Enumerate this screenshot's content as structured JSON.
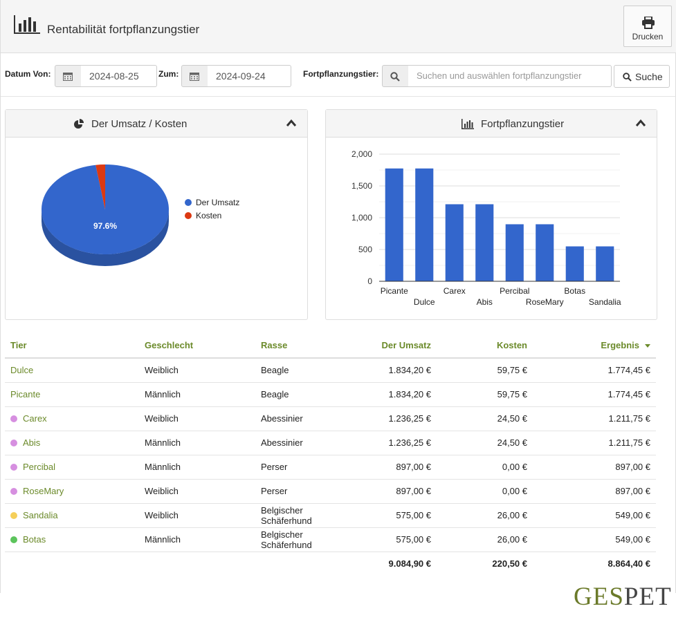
{
  "header": {
    "title": "Rentabilität fortpflanzungstier",
    "print_label": "Drucken"
  },
  "filters": {
    "from_label": "Datum Von:",
    "from_value": "2024-08-25",
    "to_label": "Zum:",
    "to_value": "2024-09-24",
    "animal_label": "Fortpflanzungstier:",
    "animal_placeholder": "Suchen und auswählen fortpflanzungstier",
    "search_label": "Suche"
  },
  "pie_panel": {
    "title": "Der Umsatz / Kosten"
  },
  "bar_panel": {
    "title": "Fortpflanzungstier"
  },
  "chart_data": [
    {
      "type": "pie",
      "slices": [
        {
          "name": "Der Umsatz",
          "value": 97.6,
          "color": "#3366cc"
        },
        {
          "name": "Kosten",
          "value": 2.4,
          "color": "#dc3912"
        }
      ],
      "slice_label": "97.6%",
      "legend": "right",
      "is3d": true
    },
    {
      "type": "bar",
      "categories": [
        "Picante",
        "Dulce",
        "Carex",
        "Abis",
        "Percibal",
        "RoseMary",
        "Botas",
        "Sandalia"
      ],
      "values": [
        1774.45,
        1774.45,
        1211.75,
        1211.75,
        897,
        897,
        549,
        549
      ],
      "yticks": [
        "2,000",
        "1,500",
        "1,000",
        "500",
        "0"
      ],
      "ylim": [
        0,
        2000
      ],
      "color": "#3366cc",
      "grid": true
    }
  ],
  "table": {
    "columns": [
      "Tier",
      "Geschlecht",
      "Rasse",
      "Der Umsatz",
      "Kosten",
      "Ergebnis"
    ],
    "rows": [
      {
        "name": "Dulce",
        "dot": "",
        "sex": "Weiblich",
        "breed": "Beagle",
        "revenue": "1.834,20 €",
        "cost": "59,75 €",
        "result": "1.774,45 €"
      },
      {
        "name": "Picante",
        "dot": "",
        "sex": "Männlich",
        "breed": "Beagle",
        "revenue": "1.834,20 €",
        "cost": "59,75 €",
        "result": "1.774,45 €"
      },
      {
        "name": "Carex",
        "dot": "#d68fe0",
        "sex": "Weiblich",
        "breed": "Abessinier",
        "revenue": "1.236,25 €",
        "cost": "24,50 €",
        "result": "1.211,75 €"
      },
      {
        "name": "Abis",
        "dot": "#d68fe0",
        "sex": "Männlich",
        "breed": "Abessinier",
        "revenue": "1.236,25 €",
        "cost": "24,50 €",
        "result": "1.211,75 €"
      },
      {
        "name": "Percibal",
        "dot": "#d68fe0",
        "sex": "Männlich",
        "breed": "Perser",
        "revenue": "897,00 €",
        "cost": "0,00 €",
        "result": "897,00 €"
      },
      {
        "name": "RoseMary",
        "dot": "#d68fe0",
        "sex": "Weiblich",
        "breed": "Perser",
        "revenue": "897,00 €",
        "cost": "0,00 €",
        "result": "897,00 €"
      },
      {
        "name": "Sandalia",
        "dot": "#f5cf5a",
        "sex": "Weiblich",
        "breed": "Belgischer Schäferhund",
        "revenue": "575,00 €",
        "cost": "26,00 €",
        "result": "549,00 €"
      },
      {
        "name": "Botas",
        "dot": "#5cc45c",
        "sex": "Männlich",
        "breed": "Belgischer Schäferhund",
        "revenue": "575,00 €",
        "cost": "26,00 €",
        "result": "549,00 €"
      }
    ],
    "totals": {
      "revenue": "9.084,90 €",
      "cost": "220,50 €",
      "result": "8.864,40 €"
    }
  },
  "logo": {
    "first": "GES",
    "second": "PET"
  },
  "colors": {
    "accent": "#6b8a2a",
    "bar": "#3366cc",
    "cost": "#dc3912"
  }
}
